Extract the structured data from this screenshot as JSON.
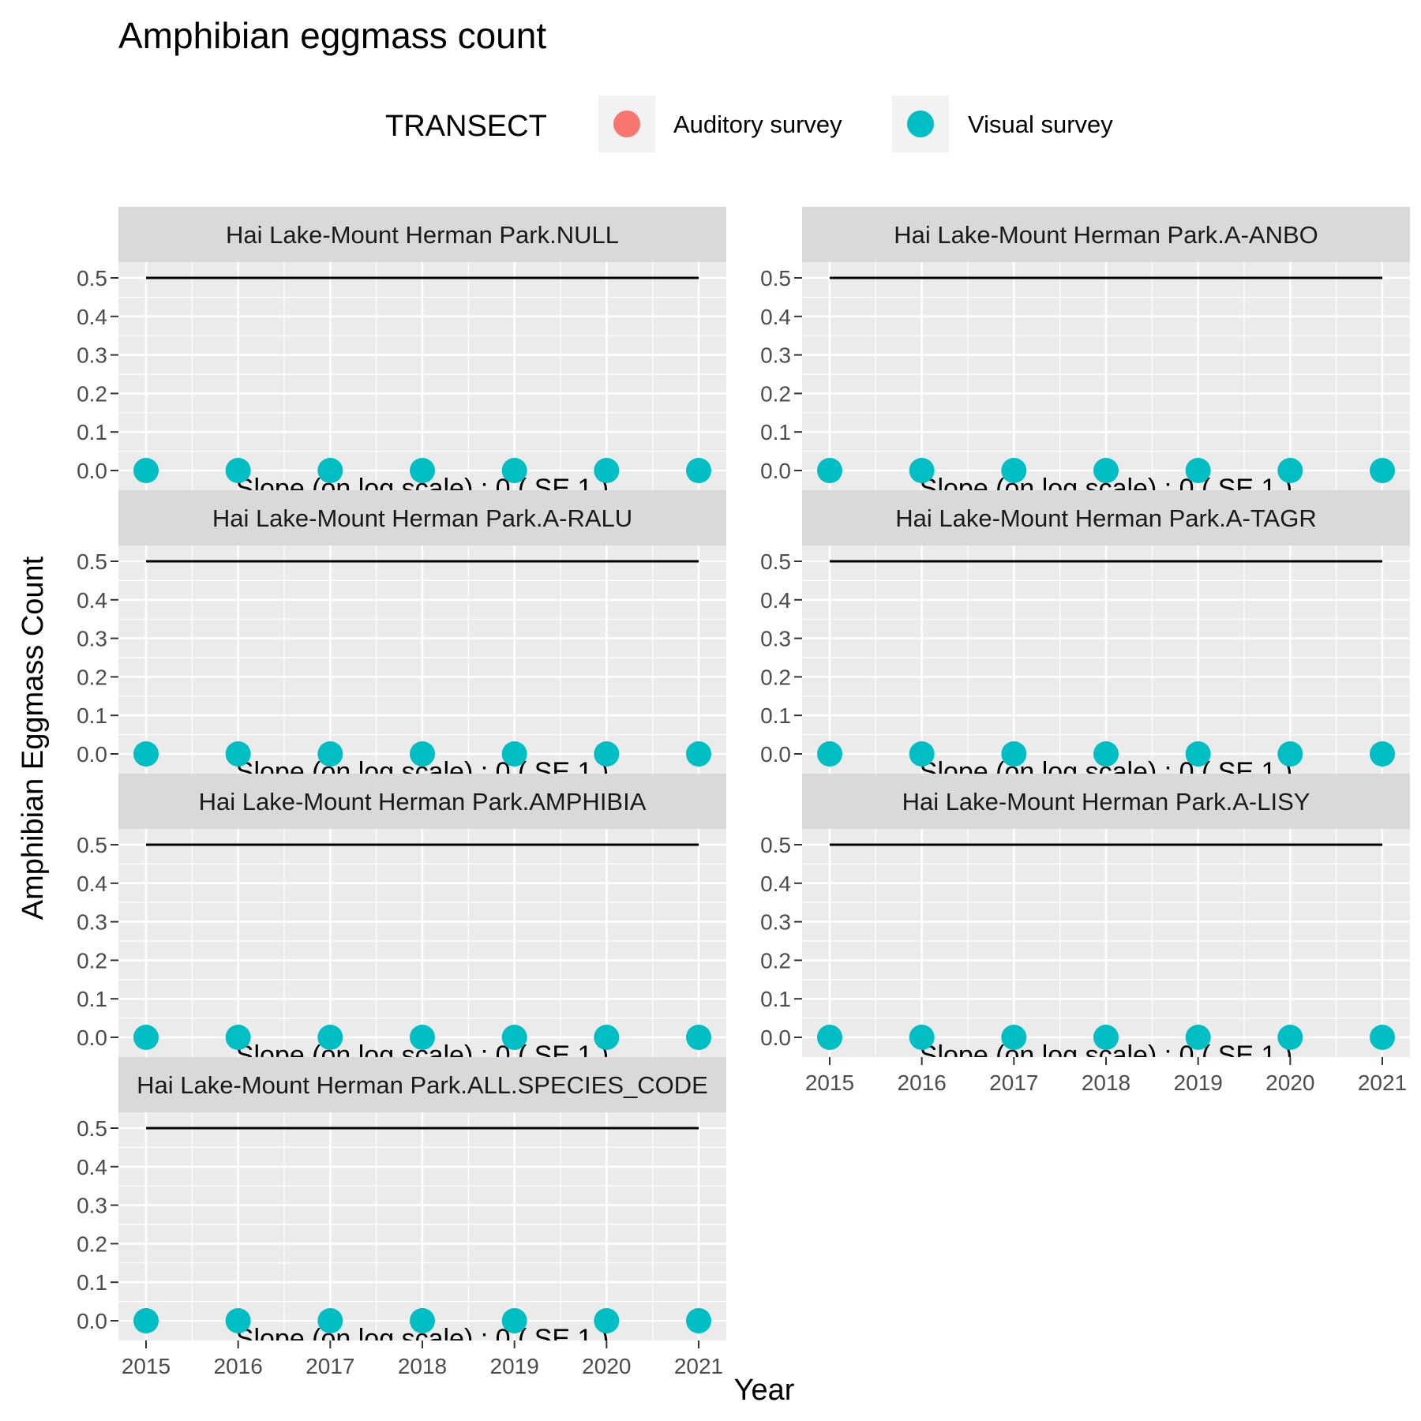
{
  "chart_data": {
    "type": "scatter",
    "title": "Amphibian eggmass count",
    "xlabel": "Year",
    "ylabel": "Amphibian Eggmass Count",
    "xlim": [
      2015,
      2021
    ],
    "ylim": [
      0,
      0.5
    ],
    "x_ticks": [
      "2015",
      "2016",
      "2017",
      "2018",
      "2019",
      "2020",
      "2021"
    ],
    "y_ticks": [
      "0.0",
      "0.1",
      "0.2",
      "0.3",
      "0.4",
      "0.5"
    ],
    "grid": true,
    "legend": {
      "title": "TRANSECT",
      "position": "top",
      "entries": [
        {
          "label": "Auditory survey",
          "color": "#F8766D"
        },
        {
          "label": "Visual survey",
          "color": "#00BFC4"
        }
      ]
    },
    "reference_line_y": 0.5,
    "annotation_text": "Slope (on log scale) : 0  ( SE  1 )",
    "panels": [
      {
        "strip": "Hai Lake-Mount Herman Park.NULL",
        "series": [
          {
            "name": "Visual survey",
            "x": [
              2015,
              2016,
              2017,
              2018,
              2019,
              2020,
              2021
            ],
            "y": [
              0,
              0,
              0,
              0,
              0,
              0,
              0
            ]
          }
        ]
      },
      {
        "strip": "Hai Lake-Mount Herman Park.A-ANBO",
        "series": [
          {
            "name": "Visual survey",
            "x": [
              2015,
              2016,
              2017,
              2018,
              2019,
              2020,
              2021
            ],
            "y": [
              0,
              0,
              0,
              0,
              0,
              0,
              0
            ]
          }
        ]
      },
      {
        "strip": "Hai Lake-Mount Herman Park.A-RALU",
        "series": [
          {
            "name": "Visual survey",
            "x": [
              2015,
              2016,
              2017,
              2018,
              2019,
              2020,
              2021
            ],
            "y": [
              0,
              0,
              0,
              0,
              0,
              0,
              0
            ]
          }
        ]
      },
      {
        "strip": "Hai Lake-Mount Herman Park.A-TAGR",
        "series": [
          {
            "name": "Visual survey",
            "x": [
              2015,
              2016,
              2017,
              2018,
              2019,
              2020,
              2021
            ],
            "y": [
              0,
              0,
              0,
              0,
              0,
              0,
              0
            ]
          }
        ]
      },
      {
        "strip": "Hai Lake-Mount Herman Park.AMPHIBIA",
        "series": [
          {
            "name": "Visual survey",
            "x": [
              2015,
              2016,
              2017,
              2018,
              2019,
              2020,
              2021
            ],
            "y": [
              0,
              0,
              0,
              0,
              0,
              0,
              0
            ]
          }
        ]
      },
      {
        "strip": "Hai Lake-Mount Herman Park.A-LISY",
        "series": [
          {
            "name": "Visual survey",
            "x": [
              2015,
              2016,
              2017,
              2018,
              2019,
              2020,
              2021
            ],
            "y": [
              0,
              0,
              0,
              0,
              0,
              0,
              0
            ]
          }
        ]
      },
      {
        "strip": "Hai Lake-Mount Herman Park.ALL.SPECIES_CODE",
        "series": [
          {
            "name": "Visual survey",
            "x": [
              2015,
              2016,
              2017,
              2018,
              2019,
              2020,
              2021
            ],
            "y": [
              0,
              0,
              0,
              0,
              0,
              0,
              0
            ]
          }
        ]
      }
    ]
  }
}
